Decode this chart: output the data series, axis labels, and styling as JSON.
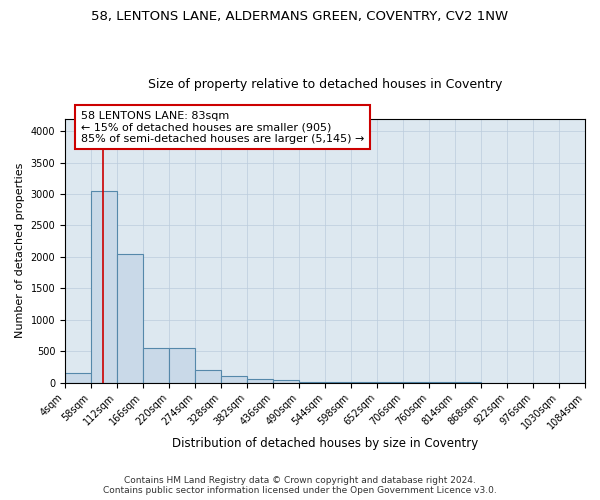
{
  "title": "58, LENTONS LANE, ALDERMANS GREEN, COVENTRY, CV2 1NW",
  "subtitle": "Size of property relative to detached houses in Coventry",
  "xlabel": "Distribution of detached houses by size in Coventry",
  "ylabel": "Number of detached properties",
  "bin_edges": [
    4,
    58,
    112,
    166,
    220,
    274,
    328,
    382,
    436,
    490,
    544,
    598,
    652,
    706,
    760,
    814,
    868,
    922,
    976,
    1030,
    1084
  ],
  "bar_values": [
    150,
    3050,
    2050,
    550,
    550,
    200,
    100,
    60,
    50,
    10,
    5,
    5,
    5,
    5,
    3,
    3,
    2,
    2,
    2,
    2
  ],
  "bar_facecolor": "#c9d9e8",
  "bar_edgecolor": "#5588aa",
  "bar_linewidth": 0.8,
  "vline_x": 83,
  "vline_color": "#cc0000",
  "vline_linewidth": 1.2,
  "annotation_text": "58 LENTONS LANE: 83sqm\n← 15% of detached houses are smaller (905)\n85% of semi-detached houses are larger (5,145) →",
  "annotation_box_color": "#ffffff",
  "annotation_box_edgecolor": "#cc0000",
  "ylim": [
    0,
    4200
  ],
  "yticks": [
    0,
    500,
    1000,
    1500,
    2000,
    2500,
    3000,
    3500,
    4000
  ],
  "background_color": "#ffffff",
  "axes_facecolor": "#dde8f0",
  "grid_color": "#bbccdd",
  "footer_line1": "Contains HM Land Registry data © Crown copyright and database right 2024.",
  "footer_line2": "Contains public sector information licensed under the Open Government Licence v3.0.",
  "title_fontsize": 9.5,
  "subtitle_fontsize": 9,
  "tick_fontsize": 7,
  "ylabel_fontsize": 8,
  "xlabel_fontsize": 8.5,
  "annotation_fontsize": 8,
  "footer_fontsize": 6.5
}
